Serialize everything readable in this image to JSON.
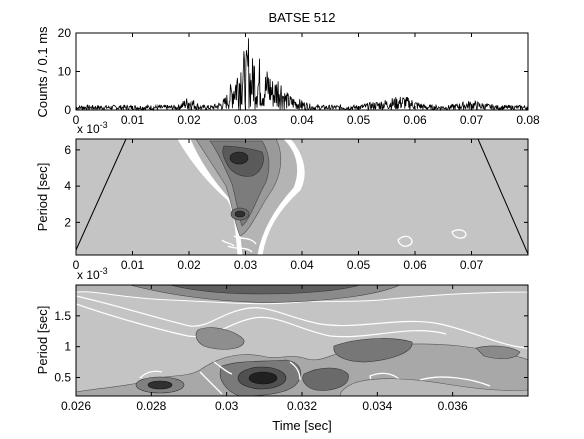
{
  "chart_data": [
    {
      "type": "line",
      "title": "BATSE 512",
      "ylabel": "Counts / 0.1 ms",
      "xlabel": "",
      "xlim": [
        0,
        0.08
      ],
      "ylim": [
        0,
        20
      ],
      "xticks": [
        "0",
        "0.01",
        "0.02",
        "0.03",
        "0.04",
        "0.05",
        "0.06",
        "0.07",
        "0.08"
      ],
      "yticks": [
        "0",
        "10",
        "20"
      ],
      "series": [
        {
          "x": [
            0.002,
            0.006,
            0.01,
            0.014,
            0.018,
            0.02,
            0.022,
            0.024,
            0.026,
            0.027,
            0.028,
            0.029,
            0.0295,
            0.03,
            0.0305,
            0.031,
            0.0315,
            0.032,
            0.0325,
            0.033,
            0.034,
            0.035,
            0.036,
            0.037,
            0.038,
            0.04,
            0.042,
            0.046,
            0.05,
            0.054,
            0.058,
            0.062,
            0.066,
            0.07,
            0.074,
            0.078
          ],
          "y": [
            1,
            1,
            1,
            1,
            1,
            3,
            1,
            1,
            2,
            4,
            8,
            11,
            14,
            10,
            16,
            9,
            13,
            8,
            11,
            7,
            9,
            6,
            8,
            4,
            3,
            2,
            1,
            1,
            1,
            2,
            3,
            1,
            1,
            2,
            1,
            1
          ]
        }
      ]
    },
    {
      "type": "heatmap",
      "title": "",
      "ylabel": "Period  [sec]",
      "xlabel": "",
      "x_multiplier": "x 10",
      "x_multiplier_exp": "-3",
      "xlim": [
        0,
        0.08
      ],
      "ylim": [
        0.2,
        6.6
      ],
      "xticks": [
        "0",
        "0.01",
        "0.02",
        "0.03",
        "0.04",
        "0.05",
        "0.06",
        "0.07"
      ],
      "yticks": [
        "2",
        "4",
        "6"
      ],
      "cone_of_influence": true,
      "power_peaks": [
        {
          "x": 0.03,
          "y": 5.6,
          "level": 0.95
        },
        {
          "x": 0.03,
          "y": 2.2,
          "level": 0.9
        },
        {
          "x": 0.0275,
          "y": 3.6,
          "level": 0.6
        },
        {
          "x": 0.035,
          "y": 1.8,
          "level": 0.35
        }
      ]
    },
    {
      "type": "heatmap",
      "title": "",
      "ylabel": "Period  [sec]",
      "xlabel": "Time  [sec]",
      "x_multiplier": "x 10",
      "x_multiplier_exp": "-3",
      "xlim": [
        0.026,
        0.038
      ],
      "ylim": [
        0.2,
        2.0
      ],
      "xticks": [
        "0.026",
        "0.028",
        "0.03",
        "0.032",
        "0.034",
        "0.036"
      ],
      "yticks": [
        "0.5",
        "1",
        "1.5"
      ],
      "power_peaks": [
        {
          "x": 0.0309,
          "y": 0.47,
          "level": 1.0
        },
        {
          "x": 0.0286,
          "y": 0.34,
          "level": 0.85
        },
        {
          "x": 0.0312,
          "y": 1.94,
          "level": 0.6
        },
        {
          "x": 0.0327,
          "y": 0.5,
          "level": 0.55
        },
        {
          "x": 0.035,
          "y": 0.85,
          "level": 0.45
        },
        {
          "x": 0.0294,
          "y": 1.0,
          "level": 0.35
        }
      ]
    }
  ]
}
